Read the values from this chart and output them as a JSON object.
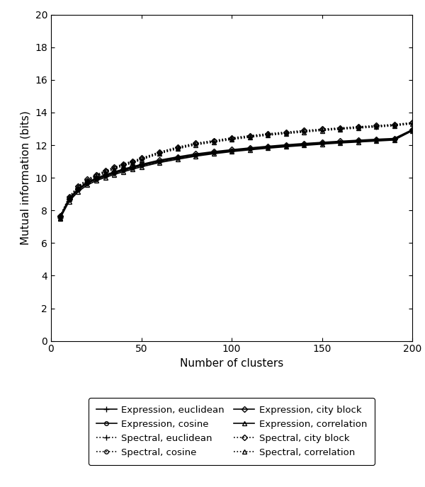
{
  "x": [
    5,
    10,
    15,
    20,
    25,
    30,
    35,
    40,
    45,
    50,
    60,
    70,
    80,
    90,
    100,
    110,
    120,
    130,
    140,
    150,
    160,
    170,
    180,
    190,
    200
  ],
  "series": {
    "expr_euclidean": [
      7.55,
      8.65,
      9.25,
      9.65,
      9.9,
      10.1,
      10.28,
      10.45,
      10.6,
      10.75,
      11.0,
      11.2,
      11.38,
      11.52,
      11.65,
      11.76,
      11.86,
      11.95,
      12.03,
      12.1,
      12.17,
      12.23,
      12.29,
      12.34,
      12.9
    ],
    "spec_euclidean": [
      7.6,
      8.75,
      9.4,
      9.82,
      10.1,
      10.35,
      10.58,
      10.78,
      10.95,
      11.15,
      11.52,
      11.82,
      12.05,
      12.22,
      12.38,
      12.52,
      12.64,
      12.74,
      12.84,
      12.93,
      13.01,
      13.08,
      13.15,
      13.22,
      13.35
    ],
    "expr_cityblock": [
      7.6,
      8.72,
      9.32,
      9.72,
      9.98,
      10.18,
      10.36,
      10.53,
      10.68,
      10.82,
      11.08,
      11.28,
      11.46,
      11.6,
      11.72,
      11.83,
      11.93,
      12.02,
      12.1,
      12.17,
      12.24,
      12.3,
      12.36,
      12.41,
      12.95
    ],
    "spec_cityblock": [
      7.65,
      8.82,
      9.48,
      9.9,
      10.18,
      10.42,
      10.65,
      10.85,
      11.02,
      11.2,
      11.58,
      11.88,
      12.12,
      12.28,
      12.45,
      12.58,
      12.7,
      12.8,
      12.9,
      12.98,
      13.06,
      13.13,
      13.2,
      13.27,
      13.38
    ],
    "expr_cosine": [
      7.58,
      8.68,
      9.28,
      9.68,
      9.93,
      10.13,
      10.31,
      10.48,
      10.62,
      10.77,
      11.02,
      11.22,
      11.4,
      11.55,
      11.67,
      11.78,
      11.88,
      11.97,
      12.05,
      12.12,
      12.19,
      12.25,
      12.31,
      12.36,
      12.92
    ],
    "spec_cosine": [
      7.62,
      8.78,
      9.44,
      9.85,
      10.13,
      10.38,
      10.6,
      10.8,
      10.97,
      11.17,
      11.54,
      11.84,
      12.08,
      12.24,
      12.4,
      12.54,
      12.66,
      12.76,
      12.86,
      12.95,
      13.02,
      13.1,
      13.17,
      13.23,
      13.37
    ],
    "expr_correlation": [
      7.5,
      8.55,
      9.15,
      9.55,
      9.82,
      10.02,
      10.2,
      10.37,
      10.52,
      10.67,
      10.93,
      11.13,
      11.32,
      11.47,
      11.6,
      11.71,
      11.81,
      11.9,
      11.98,
      12.06,
      12.13,
      12.19,
      12.25,
      12.31,
      12.88
    ],
    "spec_correlation": [
      7.55,
      8.7,
      9.35,
      9.78,
      10.06,
      10.3,
      10.53,
      10.73,
      10.9,
      11.1,
      11.47,
      11.77,
      12.01,
      12.18,
      12.34,
      12.48,
      12.6,
      12.7,
      12.8,
      12.89,
      12.97,
      13.04,
      13.11,
      13.18,
      13.3
    ]
  },
  "xlabel": "Number of clusters",
  "ylabel": "Mutual information (bits)",
  "xlim": [
    0,
    200
  ],
  "ylim": [
    0,
    20
  ],
  "xticks": [
    0,
    50,
    100,
    150,
    200
  ],
  "yticks": [
    0,
    2,
    4,
    6,
    8,
    10,
    12,
    14,
    16,
    18,
    20
  ],
  "series_styles": [
    {
      "key": "expr_euclidean",
      "ls": "solid",
      "marker": "+",
      "msize": 6,
      "mfc": "none",
      "label": "Expression, euclidean"
    },
    {
      "key": "spec_euclidean",
      "ls": "dotted",
      "marker": "+",
      "msize": 6,
      "mfc": "none",
      "label": "Spectral, euclidean"
    },
    {
      "key": "expr_cityblock",
      "ls": "solid",
      "marker": "D",
      "msize": 4,
      "mfc": "none",
      "label": "Expression, city block"
    },
    {
      "key": "spec_cityblock",
      "ls": "dotted",
      "marker": "D",
      "msize": 4,
      "mfc": "none",
      "label": "Spectral, city block"
    },
    {
      "key": "expr_cosine",
      "ls": "solid",
      "marker": "o",
      "msize": 4,
      "mfc": "none",
      "label": "Expression, cosine"
    },
    {
      "key": "spec_cosine",
      "ls": "dotted",
      "marker": "o",
      "msize": 4,
      "mfc": "none",
      "label": "Spectral, cosine"
    },
    {
      "key": "expr_correlation",
      "ls": "solid",
      "marker": "^",
      "msize": 4,
      "mfc": "none",
      "label": "Expression, correlation"
    },
    {
      "key": "spec_correlation",
      "ls": "dotted",
      "marker": "^",
      "msize": 4,
      "mfc": "none",
      "label": "Spectral, correlation"
    }
  ],
  "legend_order": [
    0,
    4,
    1,
    5,
    2,
    6,
    3,
    7
  ],
  "color": "#000000",
  "background": "#ffffff",
  "linewidth": 1.2,
  "tick_fontsize": 10,
  "label_fontsize": 11,
  "legend_fontsize": 9.5
}
